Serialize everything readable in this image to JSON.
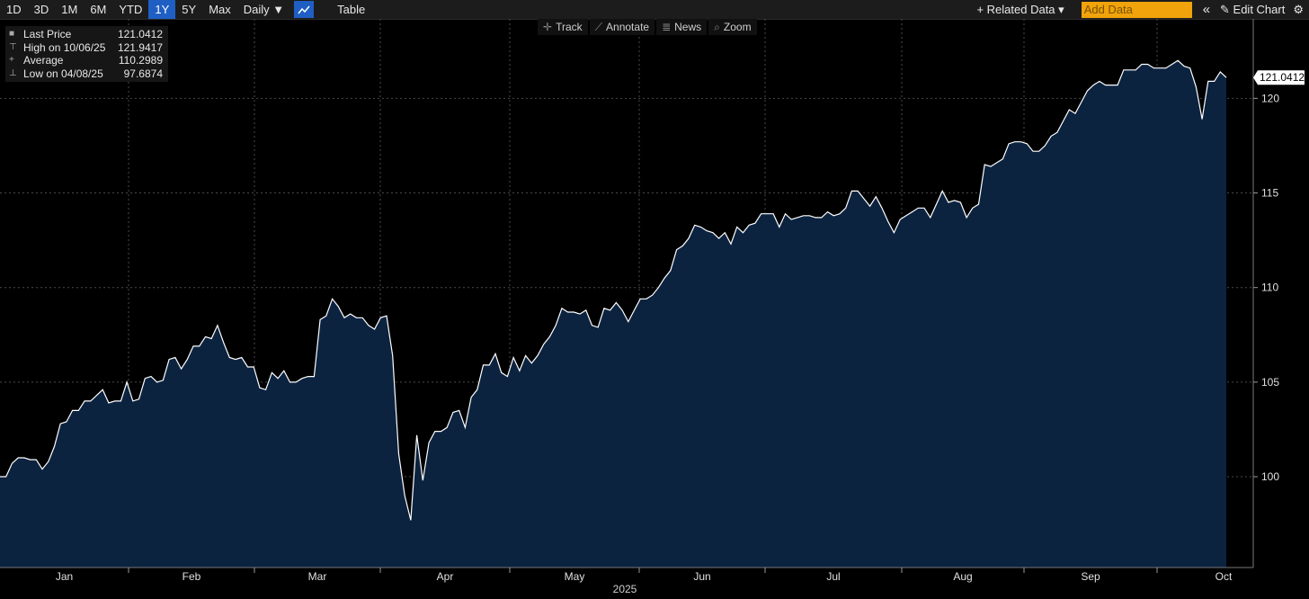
{
  "toolbar": {
    "ranges": [
      "1D",
      "3D",
      "1M",
      "6M",
      "YTD",
      "1Y",
      "5Y",
      "Max"
    ],
    "active_range": "1Y",
    "frequency": "Daily ▼",
    "table_label": "Table",
    "chart_icon": "line-chart-icon",
    "related_data": "+ Related Data ▾",
    "add_data_placeholder": "Add Data",
    "collapse_icon": "«",
    "edit_chart": "✎ Edit Chart",
    "settings_icon": "⚙"
  },
  "subtoolbar": [
    {
      "icon": "✛",
      "label": "Track"
    },
    {
      "icon": "⟋",
      "label": "Annotate"
    },
    {
      "icon": "≣",
      "label": "News"
    },
    {
      "icon": "⌕",
      "label": "Zoom"
    }
  ],
  "legend": [
    {
      "marker": "■",
      "name": "Last Price",
      "value": "121.0412"
    },
    {
      "marker": "⊤",
      "name": "High on 10/06/25",
      "value": "121.9417"
    },
    {
      "marker": "+",
      "name": "Average",
      "value": "110.2989"
    },
    {
      "marker": "⊥",
      "name": "Low on 04/08/25",
      "value": "97.6874"
    }
  ],
  "colors": {
    "line": "#ffffff",
    "area": "#0c2340",
    "background": "#000000",
    "grid": "#4a4a4a",
    "active": "#1f5fc4",
    "add_data": "#f0a30a"
  },
  "chart_data": {
    "type": "area",
    "title": "",
    "xlabel": "2025",
    "ylabel": "",
    "ylim": [
      95.2,
      124.2
    ],
    "yticks": [
      100,
      105,
      110,
      115,
      120
    ],
    "xticks": [
      "Jan",
      "Feb",
      "Mar",
      "Apr",
      "May",
      "Jun",
      "Jul",
      "Aug",
      "Sep",
      "Oct"
    ],
    "last_value_label": "121.0412",
    "grid": true,
    "series": [
      {
        "values": [
          100.0,
          100.0,
          100.7,
          101.0,
          101.0,
          100.9,
          100.9,
          100.4,
          100.8,
          101.6,
          102.8,
          102.9,
          103.5,
          103.5,
          104.0,
          104.0,
          104.3,
          104.6,
          103.9,
          104.0,
          104.0,
          105.0,
          104.0,
          104.1,
          105.2,
          105.3,
          105.0,
          105.1,
          106.2,
          106.3,
          105.7,
          106.2,
          106.9,
          106.9,
          107.4,
          107.3,
          108.0,
          107.1,
          106.3,
          106.2,
          106.3,
          105.8,
          105.8,
          104.7,
          104.6,
          105.5,
          105.2,
          105.6,
          105.0,
          105.0,
          105.2,
          105.3,
          105.3,
          108.3,
          108.5,
          109.4,
          109.0,
          108.4,
          108.6,
          108.4,
          108.4,
          108.0,
          107.8,
          108.4,
          108.5,
          106.4,
          101.2,
          99.0,
          97.7,
          102.2,
          99.8,
          101.8,
          102.4,
          102.4,
          102.6,
          103.4,
          103.5,
          102.6,
          104.2,
          104.6,
          105.9,
          105.9,
          106.5,
          105.5,
          105.3,
          106.3,
          105.6,
          106.4,
          106.0,
          106.4,
          107.0,
          107.4,
          108.0,
          108.9,
          108.7,
          108.7,
          108.6,
          108.8,
          108.0,
          107.9,
          108.9,
          108.8,
          109.2,
          108.8,
          108.2,
          108.8,
          109.4,
          109.4,
          109.6,
          110.0,
          110.5,
          110.9,
          112.0,
          112.2,
          112.6,
          113.3,
          113.2,
          113.0,
          112.9,
          112.6,
          112.9,
          112.3,
          113.2,
          112.9,
          113.3,
          113.4,
          113.9,
          113.9,
          113.9,
          113.2,
          113.9,
          113.6,
          113.7,
          113.8,
          113.8,
          113.7,
          113.7,
          114.0,
          113.8,
          113.9,
          114.2,
          115.1,
          115.1,
          114.7,
          114.3,
          114.8,
          114.2,
          113.5,
          112.9,
          113.6,
          113.8,
          114.0,
          114.2,
          114.2,
          113.7,
          114.4,
          115.1,
          114.5,
          114.6,
          114.5,
          113.7,
          114.2,
          114.4,
          116.5,
          116.4,
          116.6,
          116.8,
          117.6,
          117.7,
          117.7,
          117.6,
          117.2,
          117.2,
          117.5,
          118.0,
          118.2,
          118.8,
          119.4,
          119.2,
          119.8,
          120.4,
          120.7,
          120.9,
          120.7,
          120.7,
          120.7,
          121.5,
          121.5,
          121.5,
          121.8,
          121.8,
          121.6,
          121.6,
          121.6,
          121.8,
          122.0,
          121.7,
          121.6,
          120.6,
          118.9,
          120.9,
          120.9,
          121.4,
          121.1
        ]
      }
    ]
  }
}
